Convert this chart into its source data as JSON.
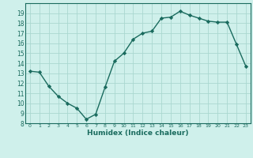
{
  "xlabel": "Humidex (Indice chaleur)",
  "ylabel": "",
  "x": [
    0,
    1,
    2,
    3,
    4,
    5,
    6,
    7,
    8,
    9,
    10,
    11,
    12,
    13,
    14,
    15,
    16,
    17,
    18,
    19,
    20,
    21,
    22,
    23
  ],
  "y": [
    13.2,
    13.1,
    11.7,
    10.7,
    10.0,
    9.5,
    8.4,
    8.9,
    11.6,
    14.2,
    15.0,
    16.4,
    17.0,
    17.2,
    18.5,
    18.6,
    19.2,
    18.8,
    18.5,
    18.2,
    18.1,
    18.1,
    15.9,
    13.7
  ],
  "ylim": [
    8,
    20
  ],
  "xlim": [
    -0.5,
    23.5
  ],
  "line_color": "#1a6b5e",
  "marker": "D",
  "marker_size": 2.2,
  "bg_color": "#cff0eb",
  "grid_color": "#aad8d0",
  "yticks": [
    8,
    9,
    10,
    11,
    12,
    13,
    14,
    15,
    16,
    17,
    18,
    19
  ],
  "xticks": [
    0,
    1,
    2,
    3,
    4,
    5,
    6,
    7,
    8,
    9,
    10,
    11,
    12,
    13,
    14,
    15,
    16,
    17,
    18,
    19,
    20,
    21,
    22,
    23
  ]
}
